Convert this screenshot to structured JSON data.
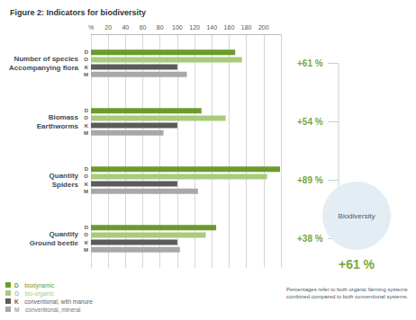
{
  "chart_data": {
    "type": "bar",
    "orientation": "horizontal",
    "title": "Figure 2: Indicators for biodiversity",
    "categories": [
      "Number of species\nAccompanying flora",
      "Biomass\nEarthworms",
      "Quantity\nSpiders",
      "Quantity\nGround beetle"
    ],
    "series": [
      {
        "name": "biodynamic",
        "code": "D",
        "color": "#6b9b2c",
        "values": [
          167,
          128,
          219,
          145
        ]
      },
      {
        "name": "bio-organic",
        "code": "O",
        "color": "#a9cb7c",
        "values": [
          175,
          156,
          204,
          133
        ]
      },
      {
        "name": "conventional, with manure",
        "code": "K",
        "color": "#5b5b5b",
        "values": [
          100,
          100,
          100,
          100
        ]
      },
      {
        "name": "conventional, mineral",
        "code": "M",
        "color": "#a8a8a8",
        "values": [
          111,
          84,
          124,
          103
        ]
      }
    ],
    "xlim": [
      0,
      220
    ],
    "xticks": [
      {
        "value": 0,
        "label": "%"
      },
      20,
      40,
      60,
      80,
      100,
      120,
      140,
      160,
      180,
      200
    ],
    "grid": true,
    "legend": "lower left",
    "annotations": [
      "+61 %",
      "+54 %",
      "+89 %",
      "+38 %"
    ],
    "summary": {
      "label": "Biodiversity",
      "value_label": "+61 %"
    },
    "note": "Percentages refer to both organic farming systems combined compared to both conventional systems."
  }
}
